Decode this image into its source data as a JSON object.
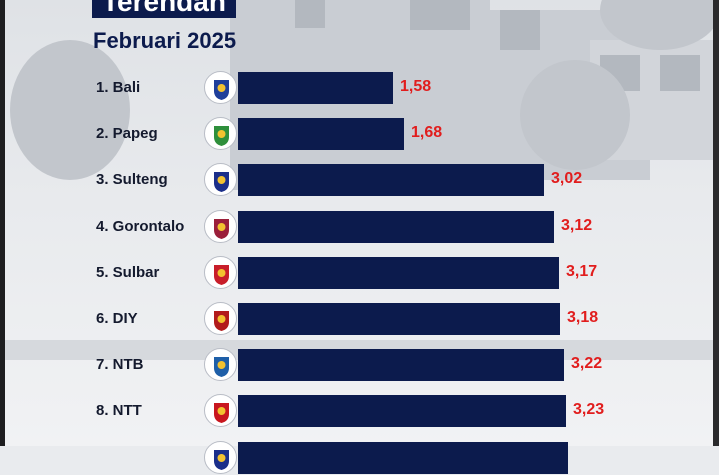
{
  "title": "Terendah",
  "subtitle": "Februari 2025",
  "colors": {
    "bar": "#0c1b4d",
    "value": "#e11d1d",
    "title_bg": "#0c1b4d"
  },
  "chart_data": {
    "type": "bar",
    "orientation": "horizontal",
    "title": "Terendah",
    "subtitle": "Februari 2025",
    "categories": [
      "1. Bali",
      "2. Papeg",
      "3. Sulteng",
      "4. Gorontalo",
      "5. Sulbar",
      "6. DIY",
      "7. NTB",
      "8. NTT",
      ""
    ],
    "values": [
      1.58,
      1.68,
      3.02,
      3.12,
      3.17,
      3.18,
      3.22,
      3.23,
      3.25
    ],
    "value_labels": [
      "1,58",
      "1,68",
      "3,02",
      "3,12",
      "3,17",
      "3,18",
      "3,22",
      "3,23",
      ""
    ],
    "emblem_icons": [
      "bali-emblem-icon",
      "papua-pegunungan-emblem-icon",
      "sulteng-emblem-icon",
      "gorontalo-emblem-icon",
      "sulbar-emblem-icon",
      "diy-emblem-icon",
      "ntb-emblem-icon",
      "ntt-emblem-icon",
      "province-emblem-icon"
    ],
    "emblem_colors": [
      "#1f3f9a",
      "#2e8f3b",
      "#1b2f8a",
      "#9b1f3a",
      "#c81e2a",
      "#b21b1b",
      "#1e5fa8",
      "#c8161e",
      "#1b2f8a"
    ],
    "xlim": [
      0,
      3.25
    ],
    "grid": false,
    "legend": "none"
  }
}
